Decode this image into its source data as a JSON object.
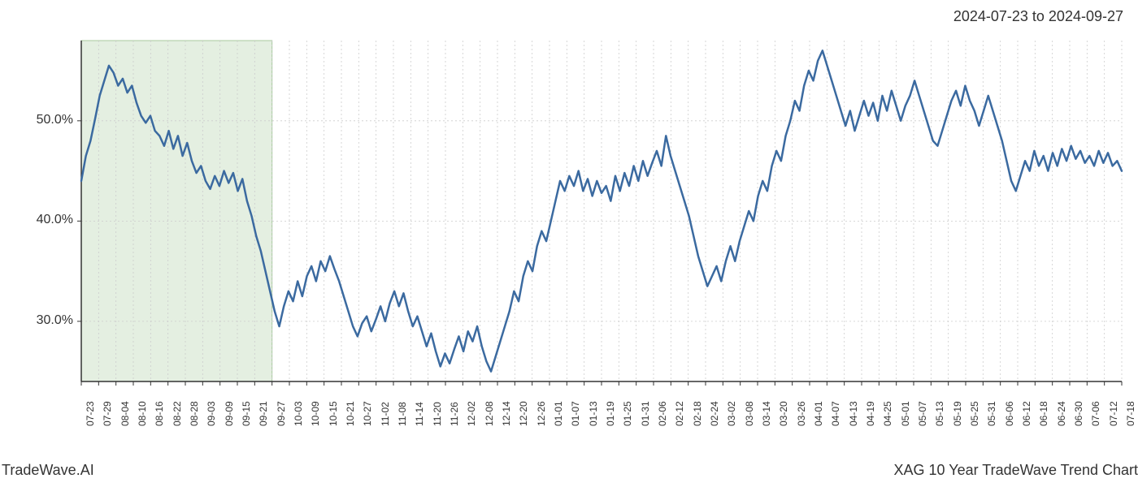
{
  "header": {
    "date_range": "2024-07-23 to 2024-09-27"
  },
  "footer": {
    "left": "TradeWave.AI",
    "right": "XAG 10 Year TradeWave Trend Chart"
  },
  "chart": {
    "type": "line",
    "line_color": "#3b6aa0",
    "line_width": 2.5,
    "background_color": "#ffffff",
    "plot_border_color": "#333333",
    "grid_color": "#cccccc",
    "grid_dash": "2,3",
    "highlight_region": {
      "x_start_index": 0,
      "x_end_index": 11,
      "fill_color": "#d9e8d4",
      "fill_opacity": 0.7,
      "border_color": "#a8c99e"
    },
    "y_axis": {
      "min": 24,
      "max": 58,
      "ticks": [
        30.0,
        40.0,
        50.0
      ],
      "tick_labels": [
        "30.0%",
        "40.0%",
        "50.0%"
      ],
      "label_fontsize": 16
    },
    "x_axis": {
      "labels": [
        "07-23",
        "07-29",
        "08-04",
        "08-10",
        "08-16",
        "08-22",
        "08-28",
        "09-03",
        "09-09",
        "09-15",
        "09-21",
        "09-27",
        "10-03",
        "10-09",
        "10-15",
        "10-21",
        "10-27",
        "11-02",
        "11-08",
        "11-14",
        "11-20",
        "11-26",
        "12-02",
        "12-08",
        "12-14",
        "12-20",
        "12-26",
        "01-01",
        "01-07",
        "01-13",
        "01-19",
        "01-25",
        "01-31",
        "02-06",
        "02-12",
        "02-18",
        "02-24",
        "03-02",
        "03-08",
        "03-14",
        "03-20",
        "03-26",
        "04-01",
        "04-07",
        "04-13",
        "04-19",
        "04-25",
        "05-01",
        "05-07",
        "05-13",
        "05-19",
        "05-25",
        "05-31",
        "06-06",
        "06-12",
        "06-18",
        "06-24",
        "06-30",
        "07-06",
        "07-12",
        "07-18"
      ],
      "label_fontsize": 12,
      "label_rotation": -90
    },
    "series": {
      "name": "trend",
      "values": [
        44.0,
        46.5,
        48.0,
        50.2,
        52.5,
        54.0,
        55.5,
        54.8,
        53.5,
        54.2,
        52.8,
        53.5,
        51.8,
        50.5,
        49.8,
        50.5,
        49.0,
        48.5,
        47.5,
        49.0,
        47.2,
        48.5,
        46.5,
        47.8,
        46.0,
        44.8,
        45.5,
        44.0,
        43.2,
        44.5,
        43.5,
        45.0,
        43.8,
        44.8,
        43.0,
        44.2,
        42.0,
        40.5,
        38.5,
        37.0,
        35.0,
        33.0,
        31.0,
        29.5,
        31.5,
        33.0,
        32.0,
        34.0,
        32.5,
        34.5,
        35.5,
        34.0,
        36.0,
        35.0,
        36.5,
        35.2,
        34.0,
        32.5,
        31.0,
        29.5,
        28.5,
        29.8,
        30.5,
        29.0,
        30.2,
        31.5,
        30.0,
        31.8,
        33.0,
        31.5,
        32.8,
        31.0,
        29.5,
        30.5,
        29.0,
        27.5,
        28.8,
        27.0,
        25.5,
        26.8,
        25.8,
        27.2,
        28.5,
        27.0,
        29.0,
        28.0,
        29.5,
        27.5,
        26.0,
        25.0,
        26.5,
        28.0,
        29.5,
        31.0,
        33.0,
        32.0,
        34.5,
        36.0,
        35.0,
        37.5,
        39.0,
        38.0,
        40.0,
        42.0,
        44.0,
        43.0,
        44.5,
        43.5,
        45.0,
        43.0,
        44.2,
        42.5,
        44.0,
        42.8,
        43.5,
        42.0,
        44.5,
        43.0,
        44.8,
        43.5,
        45.5,
        44.0,
        46.0,
        44.5,
        45.8,
        47.0,
        45.5,
        48.5,
        46.5,
        45.0,
        43.5,
        42.0,
        40.5,
        38.5,
        36.5,
        35.0,
        33.5,
        34.5,
        35.5,
        34.0,
        36.0,
        37.5,
        36.0,
        38.0,
        39.5,
        41.0,
        40.0,
        42.5,
        44.0,
        43.0,
        45.5,
        47.0,
        46.0,
        48.5,
        50.0,
        52.0,
        51.0,
        53.5,
        55.0,
        54.0,
        56.0,
        57.0,
        55.5,
        54.0,
        52.5,
        51.0,
        49.5,
        51.0,
        49.0,
        50.5,
        52.0,
        50.5,
        51.8,
        50.0,
        52.5,
        51.0,
        53.0,
        51.5,
        50.0,
        51.5,
        52.5,
        54.0,
        52.5,
        51.0,
        49.5,
        48.0,
        47.5,
        49.0,
        50.5,
        52.0,
        53.0,
        51.5,
        53.5,
        52.0,
        51.0,
        49.5,
        51.0,
        52.5,
        51.0,
        49.5,
        48.0,
        46.0,
        44.0,
        43.0,
        44.5,
        46.0,
        45.0,
        47.0,
        45.5,
        46.5,
        45.0,
        46.8,
        45.5,
        47.2,
        46.0,
        47.5,
        46.2,
        47.0,
        45.8,
        46.5,
        45.5,
        47.0,
        45.8,
        46.8,
        45.5,
        46.0,
        45.0
      ]
    }
  }
}
